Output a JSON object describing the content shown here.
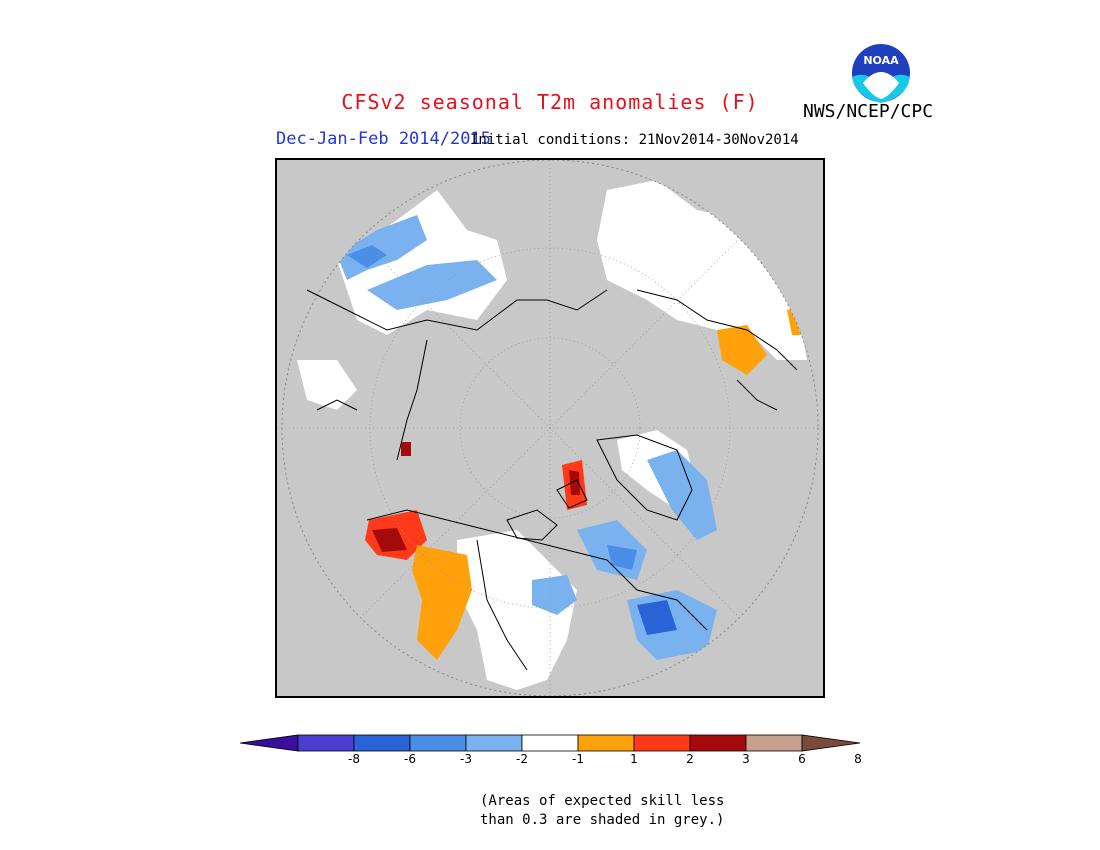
{
  "title": "CFSv2 seasonal T2m anomalies (F)",
  "agency": "NWS/NCEP/CPC",
  "logo_text": "NOAA",
  "period": "Dec-Jan-Feb 2014/2015",
  "initial_conditions": "Initial conditions: 21Nov2014-30Nov2014",
  "colors": {
    "grey_mask": "#c8c8c8",
    "neutral": "#ffffff",
    "bins": [
      "#3a0fa0",
      "#4a3fcf",
      "#2a63d6",
      "#4a8ee8",
      "#7ab2f0",
      "#ffffff",
      "#ffa10a",
      "#ff3a1a",
      "#a50a0a",
      "#c8a090",
      "#7a4a3a"
    ]
  },
  "colorbar": {
    "tick_labels": [
      "-8",
      "-6",
      "-3",
      "-2",
      "-1",
      "1",
      "2",
      "3",
      "6",
      "8"
    ]
  },
  "note": {
    "line1": "(Areas of expected skill less",
    "line2": "than 0.3 are shaded in grey.)"
  }
}
